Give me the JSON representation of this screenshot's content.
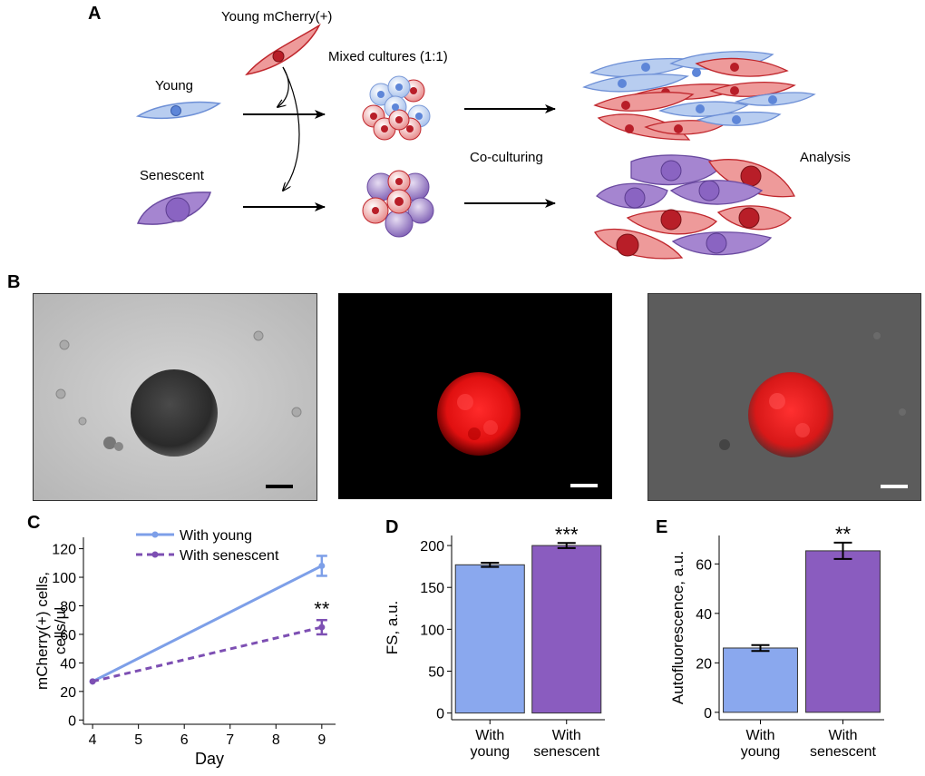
{
  "panels": {
    "A": {
      "letter": "A",
      "labels": {
        "young_mcherry": "Young mCherry(+)",
        "mixed": "Mixed cultures (1:1)",
        "young": "Young",
        "senescent": "Senescent",
        "coculturing": "Co-culturing",
        "analysis": "Analysis"
      }
    },
    "B": {
      "letter": "B"
    },
    "C": {
      "letter": "C"
    },
    "D": {
      "letter": "D"
    },
    "E": {
      "letter": "E"
    }
  },
  "colors": {
    "young": "#8aa8ee",
    "senescent": "#8a5cbf",
    "young_line": "#7d9fe8",
    "senescent_line": "#7d4fb3",
    "young_cell": "#b7cff0",
    "senescent_cell": "#9d7cc7",
    "mcherry_cell": "#e98a8a",
    "mcherry_nucleus": "#b5202a"
  },
  "chart_data": [
    {
      "id": "C",
      "type": "line",
      "xlabel": "Day",
      "ylabel_lines": [
        "mCherry(+) cells,",
        "cells/µl"
      ],
      "x_ticks": [
        4,
        5,
        6,
        7,
        8,
        9
      ],
      "y_ticks": [
        0,
        20,
        40,
        60,
        80,
        100,
        120
      ],
      "xlim": [
        3.8,
        9.3
      ],
      "ylim": [
        -3,
        128
      ],
      "series": [
        {
          "name": "With young",
          "x": [
            4,
            9
          ],
          "y": [
            27,
            108
          ],
          "err": [
            0,
            7
          ],
          "dashed": false
        },
        {
          "name": "With senescent",
          "x": [
            4,
            9
          ],
          "y": [
            27,
            65
          ],
          "err": [
            0,
            5
          ],
          "dashed": true
        }
      ],
      "annotations": [
        {
          "text": "**",
          "x": 9,
          "y": 78
        }
      ],
      "legend": "top"
    },
    {
      "id": "D",
      "type": "bar",
      "categories": [
        [
          "With",
          "young"
        ],
        [
          "With",
          "senescent"
        ]
      ],
      "values": [
        177,
        200
      ],
      "errors": [
        2.5,
        3
      ],
      "ylabel": "FS, a.u.",
      "y_ticks": [
        0,
        50,
        100,
        150,
        200
      ],
      "ylim": [
        -8,
        212
      ],
      "annotations": [
        {
          "text": "***",
          "bar": 1
        }
      ]
    },
    {
      "id": "E",
      "type": "bar",
      "categories": [
        [
          "With",
          "young"
        ],
        [
          "With",
          "senescent"
        ]
      ],
      "values": [
        26,
        65.3
      ],
      "errors": [
        1.2,
        3.3
      ],
      "ylabel": "Autofluorescence, a.u.",
      "y_ticks": [
        0,
        20,
        40,
        60
      ],
      "ylim": [
        -3,
        71.5
      ],
      "annotations": [
        {
          "text": "**",
          "bar": 1
        }
      ]
    }
  ]
}
